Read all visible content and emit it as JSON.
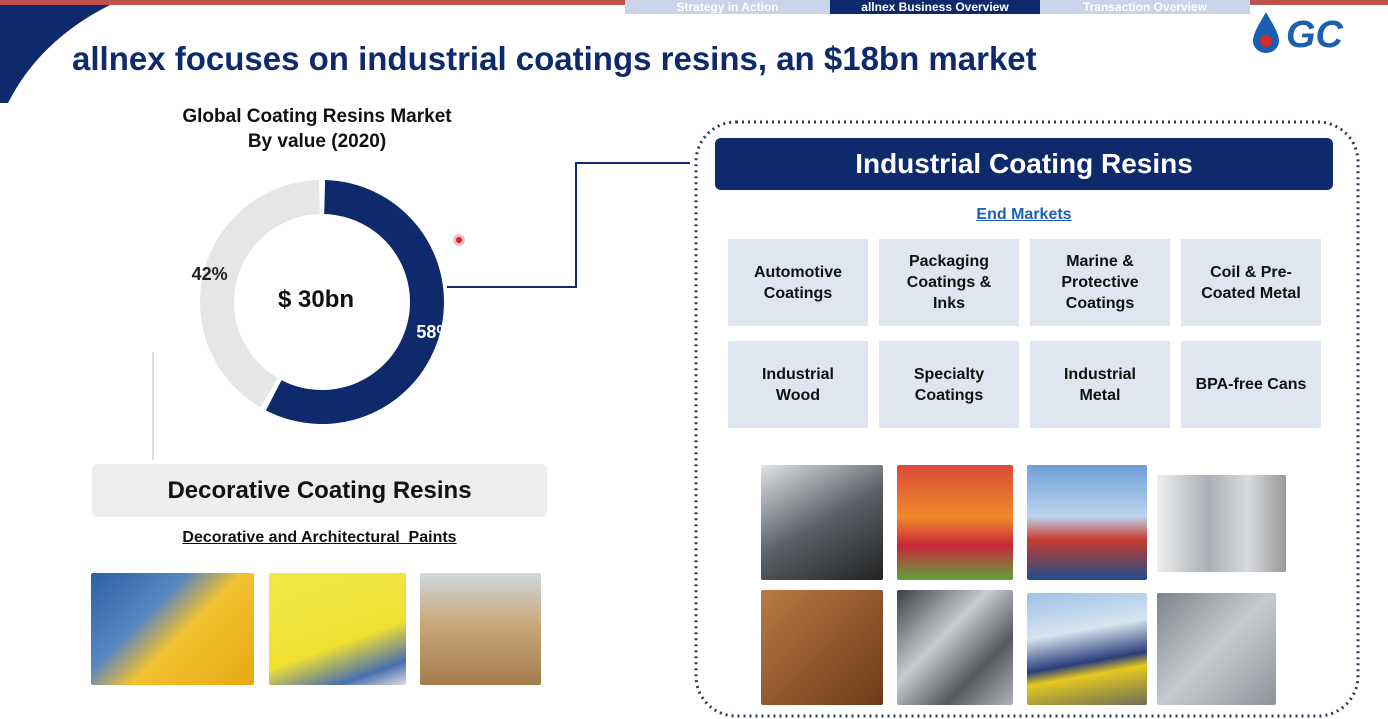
{
  "header": {
    "tabs": [
      "Strategy in Action",
      "allnex Business Overview",
      "Transaction Overview"
    ],
    "logo": "GC",
    "title": "allnex focuses on industrial coatings resins, an $18bn market"
  },
  "chart_data": {
    "type": "donut",
    "title": "Global Coating Resins Market",
    "subtitle": "By value (2020)",
    "center_label": "$ 30bn",
    "categories": [
      null,
      null
    ],
    "values": [
      58,
      42
    ],
    "value_labels": [
      "58%",
      "42%"
    ],
    "colors": [
      "#0e2a6c",
      "#e6e6e6"
    ]
  },
  "industrial": {
    "title": "Industrial Coating Resins",
    "subtitle": "End Markets",
    "markets": [
      "Automotive Coatings",
      "Packaging Coatings & Inks",
      "Marine & Protective Coatings",
      "Coil & Pre-Coated Metal",
      "Industrial Wood",
      "Specialty Coatings",
      "Industrial Metal",
      "BPA-free Cans"
    ]
  },
  "decorative": {
    "title": "Decorative Coating Resins",
    "subtitle": "Decorative and Architectural  Paints"
  }
}
